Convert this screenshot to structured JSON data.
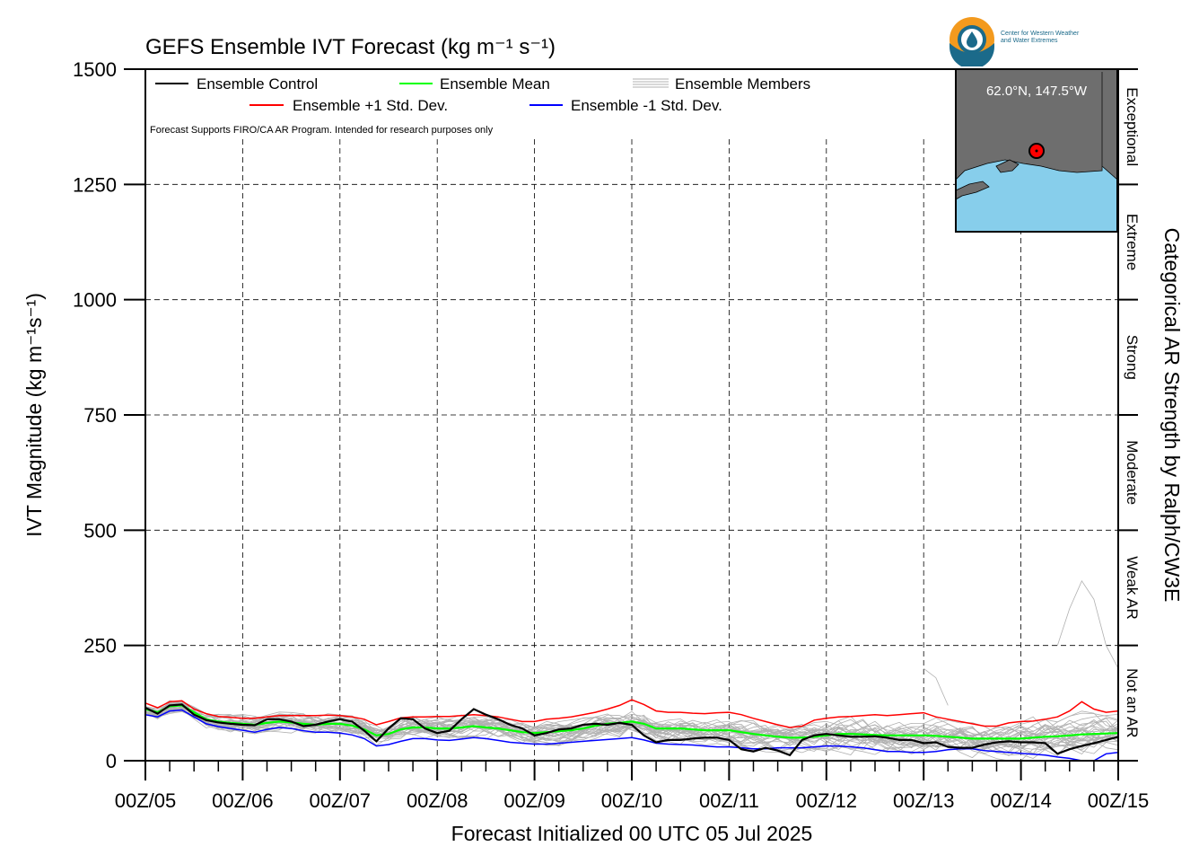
{
  "logo": {
    "line1": "Center for Western Weather",
    "line2": "and Water Extremes",
    "colors": {
      "orange": "#f39a1e",
      "blue": "#1b6a8a"
    }
  },
  "chart_data": {
    "type": "line",
    "title": "GEFS Ensemble IVT Forecast (kg m⁻¹ s⁻¹)",
    "xlabel": "Forecast Initialized 00 UTC 05 Jul 2025",
    "ylabel": "IVT Magnitude (kg m⁻¹s⁻¹)",
    "right_label": "Categorical AR Strength by Ralph/CW3E",
    "note": "Forecast Supports FIRO/CA AR Program. Intended for research purposes only",
    "ylim": [
      0,
      1500
    ],
    "yticks": [
      0,
      250,
      500,
      750,
      1000,
      1250,
      1500
    ],
    "xticks": [
      "00Z/05",
      "00Z/06",
      "00Z/07",
      "00Z/08",
      "00Z/09",
      "00Z/10",
      "00Z/11",
      "00Z/12",
      "00Z/13",
      "00Z/14",
      "00Z/15"
    ],
    "x_days_range": [
      5,
      15
    ],
    "grid": true,
    "legend_placement": "top-left",
    "categories": [
      {
        "label": "Not an AR",
        "from": 0,
        "to": 250
      },
      {
        "label": "Weak AR",
        "from": 250,
        "to": 500
      },
      {
        "label": "Moderate",
        "from": 500,
        "to": 750
      },
      {
        "label": "Strong",
        "from": 750,
        "to": 1000
      },
      {
        "label": "Extreme",
        "from": 1000,
        "to": 1250
      },
      {
        "label": "Exceptional",
        "from": 1250,
        "to": 1500
      }
    ],
    "inset": {
      "label": "62.0°N, 147.5°W",
      "colors": {
        "land": "#6e6e6e",
        "ocean": "#87ceeb",
        "marker": "#ff0000"
      }
    },
    "x": [
      5.0,
      5.125,
      5.25,
      5.375,
      5.5,
      5.625,
      5.75,
      5.875,
      6.0,
      6.125,
      6.25,
      6.375,
      6.5,
      6.625,
      6.75,
      6.875,
      7.0,
      7.125,
      7.25,
      7.375,
      7.5,
      7.625,
      7.75,
      7.875,
      8.0,
      8.125,
      8.25,
      8.375,
      8.5,
      8.625,
      8.75,
      8.875,
      9.0,
      9.125,
      9.25,
      9.375,
      9.5,
      9.625,
      9.75,
      9.875,
      10.0,
      10.125,
      10.25,
      10.375,
      10.5,
      10.625,
      10.75,
      10.875,
      11.0,
      11.125,
      11.25,
      11.375,
      11.5,
      11.625,
      11.75,
      11.875,
      12.0,
      12.125,
      12.25,
      12.375,
      12.5,
      12.625,
      12.75,
      12.875,
      13.0,
      13.125,
      13.25,
      13.375,
      13.5,
      13.625,
      13.75,
      13.875,
      14.0,
      14.125,
      14.25,
      14.375,
      14.5,
      14.625,
      14.75,
      14.875,
      15.0
    ],
    "series": [
      {
        "name": "Ensemble Control",
        "color": "#000000",
        "values": [
          115,
          102,
          120,
          122,
          100,
          88,
          83,
          80,
          78,
          77,
          90,
          90,
          85,
          75,
          78,
          85,
          90,
          85,
          65,
          42,
          70,
          92,
          90,
          70,
          60,
          65,
          90,
          112,
          100,
          90,
          78,
          70,
          55,
          60,
          68,
          70,
          78,
          80,
          78,
          82,
          78,
          55,
          40,
          45,
          45,
          48,
          50,
          50,
          45,
          25,
          20,
          28,
          22,
          12,
          45,
          55,
          58,
          55,
          52,
          52,
          53,
          50,
          45,
          45,
          38,
          40,
          30,
          28,
          28,
          35,
          40,
          42,
          40,
          40,
          38,
          15,
          25,
          32,
          38,
          45,
          52
        ]
      },
      {
        "name": "Ensemble Mean",
        "color": "#00ff00",
        "values": [
          112,
          105,
          118,
          120,
          105,
          90,
          85,
          82,
          80,
          78,
          82,
          85,
          83,
          80,
          78,
          80,
          80,
          76,
          68,
          55,
          58,
          68,
          72,
          72,
          70,
          70,
          72,
          75,
          72,
          70,
          66,
          62,
          60,
          62,
          64,
          66,
          70,
          76,
          80,
          82,
          85,
          80,
          70,
          70,
          70,
          68,
          66,
          66,
          66,
          62,
          58,
          55,
          52,
          50,
          50,
          52,
          55,
          58,
          58,
          57,
          56,
          55,
          55,
          55,
          55,
          54,
          52,
          50,
          48,
          48,
          48,
          48,
          48,
          50,
          52,
          53,
          55,
          57,
          58,
          59,
          60
        ]
      },
      {
        "name": "Ensemble +1 Std. Dev.",
        "color": "#ff0000",
        "values": [
          125,
          115,
          128,
          130,
          112,
          102,
          96,
          94,
          92,
          92,
          95,
          98,
          98,
          98,
          98,
          99,
          98,
          95,
          90,
          78,
          85,
          93,
          95,
          95,
          96,
          96,
          98,
          100,
          98,
          95,
          90,
          85,
          85,
          90,
          92,
          95,
          100,
          105,
          112,
          120,
          132,
          122,
          108,
          105,
          105,
          103,
          102,
          104,
          105,
          100,
          92,
          85,
          78,
          72,
          75,
          88,
          92,
          95,
          96,
          98,
          100,
          98,
          100,
          102,
          104,
          95,
          90,
          85,
          80,
          75,
          75,
          82,
          85,
          86,
          90,
          95,
          108,
          128,
          112,
          105,
          108
        ]
      },
      {
        "name": "Ensemble -1 Std. Dev.",
        "color": "#0000ff",
        "values": [
          100,
          95,
          108,
          110,
          95,
          80,
          74,
          70,
          66,
          62,
          68,
          72,
          70,
          65,
          62,
          62,
          60,
          56,
          48,
          32,
          35,
          42,
          48,
          48,
          45,
          44,
          47,
          50,
          48,
          44,
          40,
          38,
          36,
          36,
          38,
          40,
          42,
          44,
          46,
          48,
          50,
          45,
          38,
          36,
          35,
          34,
          32,
          30,
          30,
          28,
          26,
          26,
          28,
          28,
          28,
          30,
          32,
          32,
          30,
          28,
          24,
          20,
          20,
          18,
          18,
          20,
          24,
          26,
          26,
          22,
          20,
          18,
          16,
          14,
          12,
          8,
          5,
          0,
          0,
          15,
          18
        ]
      }
    ],
    "members_legend": "Ensemble Members",
    "members_color": "#b0b0b0"
  }
}
